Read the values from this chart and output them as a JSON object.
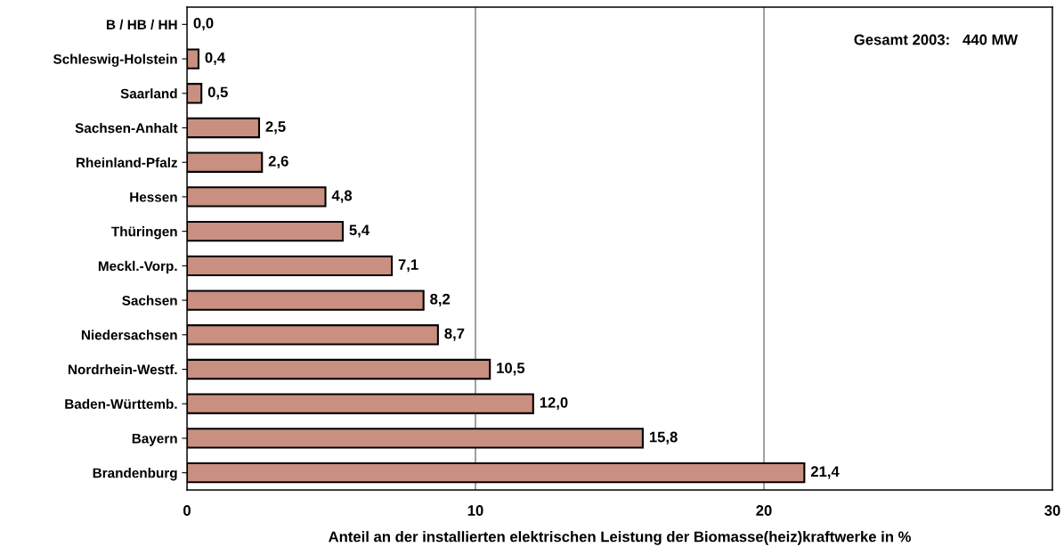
{
  "chart_data": {
    "type": "bar",
    "orientation": "horizontal",
    "categories": [
      "B / HB / HH",
      "Schleswig-Holstein",
      "Saarland",
      "Sachsen-Anhalt",
      "Rheinland-Pfalz",
      "Hessen",
      "Thüringen",
      "Meckl.-Vorp.",
      "Sachsen",
      "Niedersachsen",
      "Nordrhein-Westf.",
      "Baden-Württemb.",
      "Bayern",
      "Brandenburg"
    ],
    "values": [
      0.0,
      0.4,
      0.5,
      2.5,
      2.6,
      4.8,
      5.4,
      7.1,
      8.2,
      8.7,
      10.5,
      12.0,
      15.8,
      21.4
    ],
    "value_labels": [
      "0,0",
      "0,4",
      "0,5",
      "2,5",
      "2,6",
      "4,8",
      "5,4",
      "7,1",
      "8,2",
      "8,7",
      "10,5",
      "12,0",
      "15,8",
      "21,4"
    ],
    "color": "#c98f80",
    "xlim": [
      0,
      30
    ],
    "xticks": [
      0,
      10,
      20,
      30
    ],
    "grid": "x",
    "xlabel": "Anteil an der installierten elektrischen Leistung der Biomasse(heiz)kraftwerke in %",
    "annotations": [
      "Gesamt 2003:   440 MW"
    ]
  }
}
